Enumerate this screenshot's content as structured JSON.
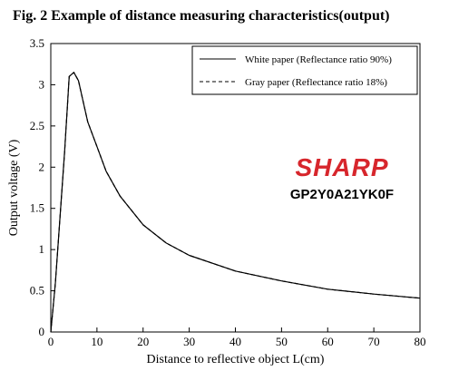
{
  "chart_data": {
    "type": "line",
    "title": "Fig. 2 Example of distance measuring characteristics(output)",
    "xlabel": "Distance to reflective object L(cm)",
    "ylabel": "Output voltage (V)",
    "xlim": [
      0,
      80
    ],
    "ylim": [
      0,
      3.5
    ],
    "xticks": [
      "0",
      "10",
      "20",
      "30",
      "40",
      "50",
      "60",
      "70",
      "80"
    ],
    "yticks": [
      "0",
      "0.5",
      "1",
      "1.5",
      "2",
      "2.5",
      "3",
      "3.5"
    ],
    "grid": false,
    "legend_position": "top-right",
    "series": [
      {
        "name": "White paper (Reflectance ratio 90%)",
        "line_style": "solid",
        "x": [
          0,
          1,
          2,
          3,
          4,
          5,
          6,
          7,
          8,
          10,
          12,
          15,
          20,
          25,
          30,
          40,
          50,
          60,
          70,
          80
        ],
        "y": [
          0.0,
          0.6,
          1.4,
          2.2,
          3.1,
          3.15,
          3.05,
          2.8,
          2.55,
          2.25,
          1.95,
          1.65,
          1.3,
          1.08,
          0.93,
          0.74,
          0.62,
          0.52,
          0.46,
          0.41
        ]
      },
      {
        "name": "Gray paper (Reflectance ratio 18%)",
        "line_style": "dashed",
        "x": [
          0,
          1,
          2,
          3,
          4,
          5,
          6,
          7,
          8,
          10,
          12,
          15,
          20,
          25,
          30,
          40,
          50,
          60,
          70,
          80
        ],
        "y": [
          0.0,
          0.6,
          1.4,
          2.2,
          3.1,
          3.15,
          3.05,
          2.8,
          2.55,
          2.25,
          1.95,
          1.65,
          1.3,
          1.08,
          0.93,
          0.74,
          0.62,
          0.52,
          0.46,
          0.41
        ]
      }
    ]
  },
  "logo": {
    "brand": "SHARP",
    "model": "GP2Y0A21YK0F",
    "brand_color": "#d7262c"
  }
}
